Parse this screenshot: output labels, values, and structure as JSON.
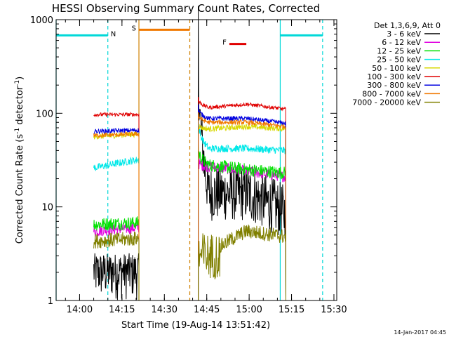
{
  "chart_data": {
    "type": "line",
    "title": "HESSI Observing Summary Count Rates, Corrected",
    "xlabel": "Start Time (19-Aug-14 13:51:42)",
    "ylabel": "Corrected Count Rate (s",
    "ylabel_sup": "-1",
    "ylabel_tail": " detector",
    "ylabel_tail_sup": "-1",
    "ylabel_end": ")",
    "y_scale": "log",
    "ylim": [
      1,
      1000
    ],
    "xlim": [
      "13:51:42",
      "15:31:00"
    ],
    "x_tick_labels": [
      "14:00",
      "14:15",
      "14:30",
      "14:45",
      "15:00",
      "15:15",
      "15:30"
    ],
    "y_tick_labels": [
      "1",
      "10",
      "100",
      "1000"
    ],
    "legend_title": "Det 1,3,6,9, Att 0",
    "legend_position": "right",
    "timestamp": "14-Jan-2017 04:45",
    "flags": [
      {
        "label": "N",
        "color": "#00d8d8",
        "segments": [
          [
            "13:51:42",
            "14:10:00"
          ],
          [
            "15:11:00",
            "15:26:00"
          ]
        ]
      },
      {
        "label": "S",
        "color": "#f07800",
        "segments": [
          [
            "14:21:00",
            "14:39:00"
          ]
        ]
      },
      {
        "label": "F",
        "color": "#e00000",
        "segments": [
          [
            "14:53:00",
            "14:59:00"
          ]
        ]
      }
    ],
    "vlines": [
      {
        "time": "13:51:42",
        "color": "#00d8d8",
        "style": "solid"
      },
      {
        "time": "14:10:00",
        "color": "#00d8d8",
        "style": "dashed"
      },
      {
        "time": "14:21:00",
        "color": "#d08000",
        "style": "solid"
      },
      {
        "time": "14:39:00",
        "color": "#d08000",
        "style": "dashed"
      },
      {
        "time": "15:11:00",
        "color": "#00d8d8",
        "style": "solid"
      },
      {
        "time": "15:26:00",
        "color": "#00d8d8",
        "style": "dashed"
      }
    ],
    "observing_windows": [
      [
        "14:05:00",
        "14:21:00"
      ],
      [
        "14:42:00",
        "15:13:00"
      ]
    ],
    "series": [
      {
        "name": "3 - 6 keV",
        "color": "#000000",
        "w1": [
          1.8,
          1.9
        ],
        "w2": [
          850,
          14,
          14,
          8.5
        ],
        "noise": 0.3
      },
      {
        "name": "6 - 12 keV",
        "color": "#e000e0",
        "w1": [
          5.5,
          6.0
        ],
        "w2": [
          30,
          27,
          24,
          21
        ],
        "noise": 0.06
      },
      {
        "name": "12 - 25 keV",
        "color": "#00e000",
        "w1": [
          6.5,
          6.8
        ],
        "w2": [
          45,
          28,
          25,
          23
        ],
        "noise": 0.07
      },
      {
        "name": "25 - 50 keV",
        "color": "#00e8e8",
        "w1": [
          26,
          32
        ],
        "w2": [
          95,
          42,
          42,
          40
        ],
        "noise": 0.04
      },
      {
        "name": "50 - 100 keV",
        "color": "#d8d800",
        "w1": [
          56,
          60
        ],
        "w2": [
          75,
          68,
          72,
          68
        ],
        "noise": 0.03
      },
      {
        "name": "100 - 300 keV",
        "color": "#e00000",
        "w1": [
          97,
          97
        ],
        "w2": [
          150,
          115,
          125,
          110
        ],
        "noise": 0.02
      },
      {
        "name": "300 - 800 keV",
        "color": "#0000e0",
        "w1": [
          64,
          66
        ],
        "w2": [
          120,
          88,
          88,
          78
        ],
        "noise": 0.025
      },
      {
        "name": "800 - 7000 keV",
        "color": "#f07800",
        "w1": [
          58,
          60
        ],
        "w2": [
          100,
          80,
          80,
          72
        ],
        "noise": 0.025
      },
      {
        "name": "7000 - 20000 keV",
        "color": "#808000",
        "w1": [
          4.3,
          4.6
        ],
        "w2": [
          3.0,
          3.0,
          5.5,
          4.8
        ],
        "noise": 0.08
      }
    ]
  }
}
